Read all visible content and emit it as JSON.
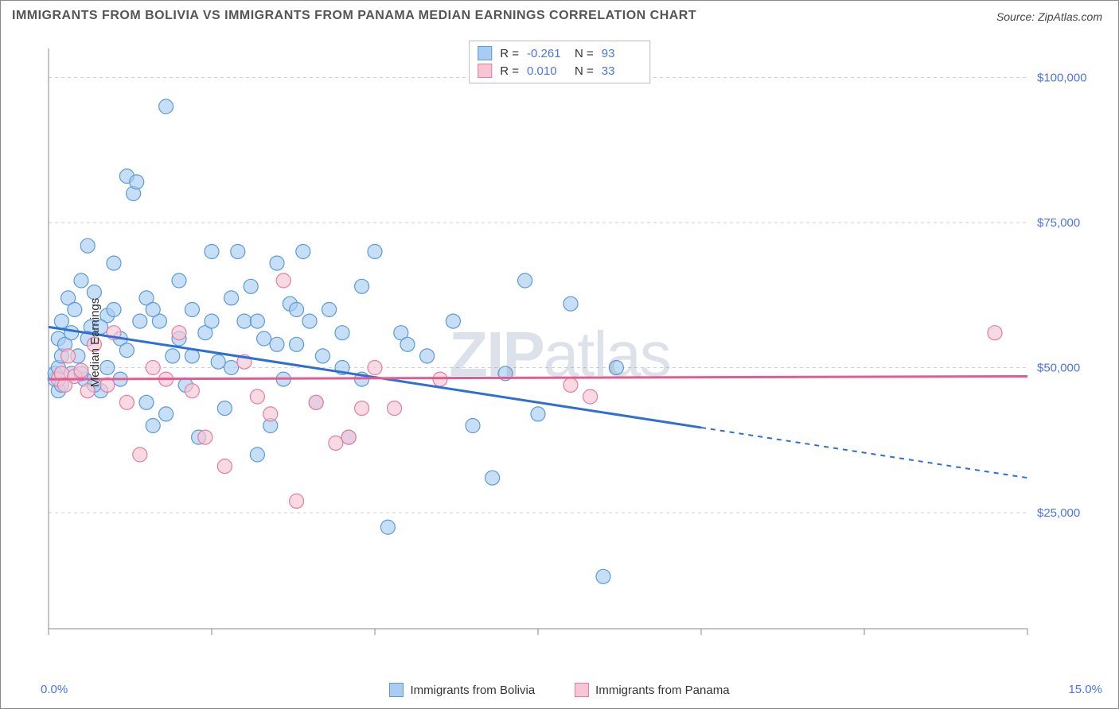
{
  "title": "IMMIGRANTS FROM BOLIVIA VS IMMIGRANTS FROM PANAMA MEDIAN EARNINGS CORRELATION CHART",
  "source": "Source: ZipAtlas.com",
  "watermark": "ZIPatlas",
  "ylabel": "Median Earnings",
  "chart": {
    "type": "scatter",
    "background_color": "#ffffff",
    "grid_color": "#d0d0d0",
    "axis_color": "#888888",
    "tick_color": "#888888",
    "label_color": "#4a74e8",
    "x": {
      "min": 0,
      "max": 15,
      "ticks": [
        0,
        2.5,
        5,
        7.5,
        10,
        12.5,
        15
      ],
      "tick_labels_shown": [
        "0.0%",
        "15.0%"
      ]
    },
    "y": {
      "min": 5000,
      "max": 105000,
      "gridlines": [
        25000,
        50000,
        75000,
        100000
      ],
      "gridline_labels": [
        "$25,000",
        "$50,000",
        "$75,000",
        "$100,000"
      ]
    },
    "marker_radius": 9,
    "marker_stroke_width": 1.2,
    "trend_line_width": 3,
    "label_fontsize": 15,
    "title_fontsize": 16
  },
  "series": [
    {
      "name": "Immigrants from Bolivia",
      "fill": "#a9cdf2",
      "stroke": "#5b9bd5",
      "line_color": "#2e6fd6",
      "r": "-0.261",
      "n": "93",
      "trend": {
        "y_at_x0": 57000,
        "y_at_x15": 31000,
        "solid_until_x": 10
      },
      "points": [
        [
          0.1,
          48000
        ],
        [
          0.1,
          49000
        ],
        [
          0.15,
          50000
        ],
        [
          0.15,
          46000
        ],
        [
          0.15,
          55000
        ],
        [
          0.2,
          58000
        ],
        [
          0.2,
          52000
        ],
        [
          0.2,
          47000
        ],
        [
          0.25,
          54000
        ],
        [
          0.3,
          62000
        ],
        [
          0.35,
          49000
        ],
        [
          0.35,
          56000
        ],
        [
          0.4,
          60000
        ],
        [
          0.45,
          52000
        ],
        [
          0.5,
          65000
        ],
        [
          0.55,
          48000
        ],
        [
          0.6,
          71000
        ],
        [
          0.65,
          57000
        ],
        [
          0.7,
          63000
        ],
        [
          0.8,
          46000
        ],
        [
          0.9,
          59000
        ],
        [
          1.0,
          68000
        ],
        [
          1.1,
          55000
        ],
        [
          1.2,
          83000
        ],
        [
          1.3,
          80000
        ],
        [
          1.35,
          82000
        ],
        [
          1.5,
          62000
        ],
        [
          1.6,
          40000
        ],
        [
          1.7,
          58000
        ],
        [
          1.8,
          95000
        ],
        [
          1.9,
          52000
        ],
        [
          2.0,
          65000
        ],
        [
          2.1,
          47000
        ],
        [
          2.2,
          60000
        ],
        [
          2.3,
          38000
        ],
        [
          2.4,
          56000
        ],
        [
          2.5,
          70000
        ],
        [
          2.6,
          51000
        ],
        [
          2.7,
          43000
        ],
        [
          2.8,
          62000
        ],
        [
          2.9,
          70000
        ],
        [
          3.0,
          58000
        ],
        [
          3.1,
          64000
        ],
        [
          3.2,
          35000
        ],
        [
          3.3,
          55000
        ],
        [
          3.4,
          40000
        ],
        [
          3.5,
          68000
        ],
        [
          3.6,
          48000
        ],
        [
          3.7,
          61000
        ],
        [
          3.8,
          54000
        ],
        [
          3.9,
          70000
        ],
        [
          4.0,
          58000
        ],
        [
          4.1,
          44000
        ],
        [
          4.3,
          60000
        ],
        [
          4.5,
          50000
        ],
        [
          4.6,
          38000
        ],
        [
          4.8,
          64000
        ],
        [
          5.0,
          70000
        ],
        [
          5.2,
          22500
        ],
        [
          5.4,
          56000
        ],
        [
          5.8,
          52000
        ],
        [
          6.2,
          58000
        ],
        [
          6.5,
          40000
        ],
        [
          6.8,
          31000
        ],
        [
          7.0,
          49000
        ],
        [
          7.3,
          65000
        ],
        [
          7.5,
          42000
        ],
        [
          8.0,
          61000
        ],
        [
          8.5,
          14000
        ],
        [
          8.7,
          50000
        ],
        [
          0.5,
          49000
        ],
        [
          0.6,
          55000
        ],
        [
          0.7,
          47000
        ],
        [
          0.8,
          57000
        ],
        [
          0.9,
          50000
        ],
        [
          1.0,
          60000
        ],
        [
          1.1,
          48000
        ],
        [
          1.2,
          53000
        ],
        [
          1.4,
          58000
        ],
        [
          1.5,
          44000
        ],
        [
          1.6,
          60000
        ],
        [
          1.8,
          42000
        ],
        [
          2.0,
          55000
        ],
        [
          2.2,
          52000
        ],
        [
          2.5,
          58000
        ],
        [
          2.8,
          50000
        ],
        [
          3.2,
          58000
        ],
        [
          3.5,
          54000
        ],
        [
          3.8,
          60000
        ],
        [
          4.2,
          52000
        ],
        [
          4.5,
          56000
        ],
        [
          4.8,
          48000
        ],
        [
          5.5,
          54000
        ]
      ]
    },
    {
      "name": "Immigrants from Panama",
      "fill": "#f6c6d4",
      "stroke": "#e87ba0",
      "line_color": "#e75a8f",
      "r": "0.010",
      "n": "33",
      "trend": {
        "y_at_x0": 48000,
        "y_at_x15": 48500,
        "solid_until_x": 15
      },
      "points": [
        [
          0.15,
          48000
        ],
        [
          0.2,
          49000
        ],
        [
          0.25,
          47000
        ],
        [
          0.3,
          52000
        ],
        [
          0.4,
          48500
        ],
        [
          0.5,
          49500
        ],
        [
          0.6,
          46000
        ],
        [
          0.7,
          54000
        ],
        [
          0.9,
          47000
        ],
        [
          1.0,
          56000
        ],
        [
          1.2,
          44000
        ],
        [
          1.4,
          35000
        ],
        [
          1.6,
          50000
        ],
        [
          1.8,
          48000
        ],
        [
          2.0,
          56000
        ],
        [
          2.2,
          46000
        ],
        [
          2.4,
          38000
        ],
        [
          2.7,
          33000
        ],
        [
          3.0,
          51000
        ],
        [
          3.2,
          45000
        ],
        [
          3.4,
          42000
        ],
        [
          3.6,
          65000
        ],
        [
          3.8,
          27000
        ],
        [
          4.1,
          44000
        ],
        [
          4.4,
          37000
        ],
        [
          4.6,
          38000
        ],
        [
          4.8,
          43000
        ],
        [
          5.0,
          50000
        ],
        [
          5.3,
          43000
        ],
        [
          6.0,
          48000
        ],
        [
          8.0,
          47000
        ],
        [
          8.3,
          45000
        ],
        [
          14.5,
          56000
        ]
      ]
    }
  ]
}
